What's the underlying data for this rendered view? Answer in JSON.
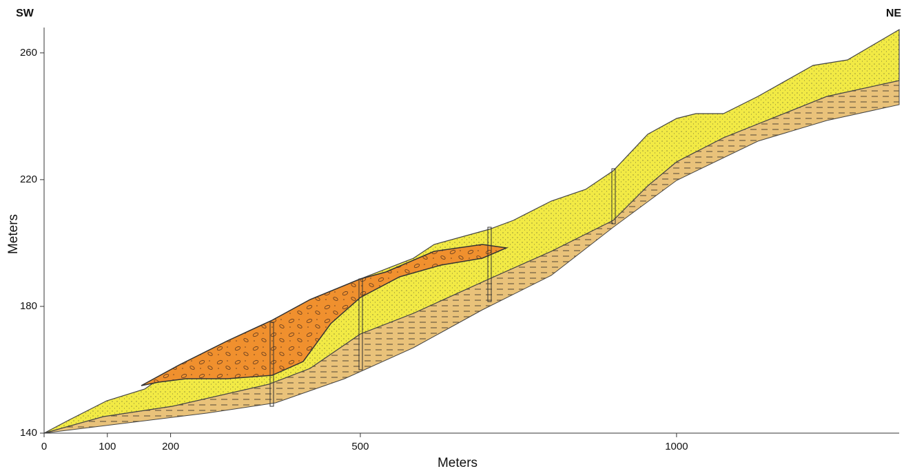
{
  "labels": {
    "left": "SW",
    "right": "NE"
  },
  "x_axis": {
    "label": "Meters",
    "lim": [
      0,
      1352
    ],
    "ticks": [
      0,
      100,
      200,
      500,
      1000
    ]
  },
  "y_axis": {
    "label": "Meters",
    "lim": [
      140,
      268
    ],
    "ticks": [
      140,
      180,
      220,
      260
    ]
  }
}
